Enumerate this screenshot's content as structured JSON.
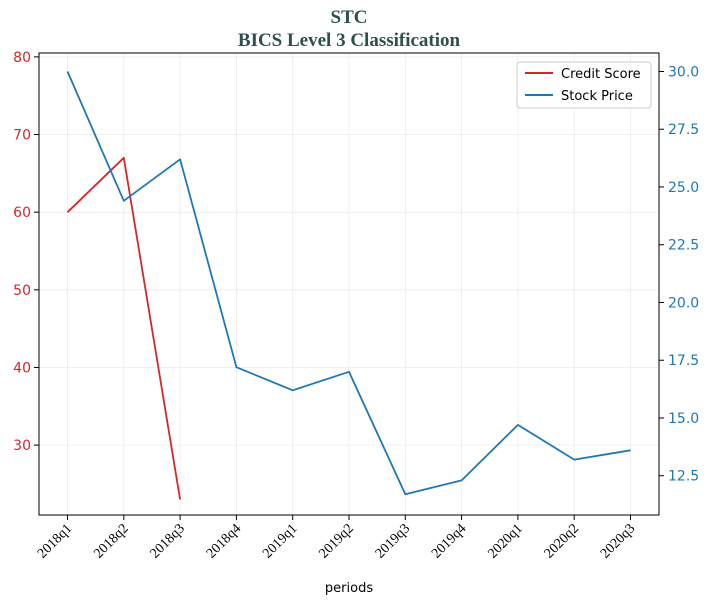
{
  "chart_data": {
    "type": "line",
    "title_line1": "STC",
    "title_line2": "BICS Level 3 Classification",
    "xlabel": "periods",
    "categories": [
      "2018q1",
      "2018q2",
      "2018q3",
      "2018q4",
      "2019q1",
      "2019q2",
      "2019q3",
      "2019q4",
      "2020q1",
      "2020q2",
      "2020q3"
    ],
    "y_left": {
      "ylim": [
        21,
        80.5
      ],
      "ticks": [
        30,
        40,
        50,
        60,
        70,
        80
      ],
      "tick_labels": [
        "30",
        "40",
        "50",
        "60",
        "70",
        "80"
      ],
      "color": "#d62728"
    },
    "y_right": {
      "ylim": [
        10.8,
        30.8
      ],
      "ticks": [
        12.5,
        15.0,
        17.5,
        20.0,
        22.5,
        25.0,
        27.5,
        30.0
      ],
      "tick_labels": [
        "12.5",
        "15.0",
        "17.5",
        "20.0",
        "22.5",
        "25.0",
        "27.5",
        "30.0"
      ],
      "color": "#1f77b4"
    },
    "grid": true,
    "legend_position": "top-right",
    "series": [
      {
        "name": "Credit Score",
        "axis": "left",
        "color": "#d62728",
        "values": [
          60,
          67,
          23,
          null,
          null,
          null,
          null,
          null,
          null,
          null,
          null
        ]
      },
      {
        "name": "Stock Price",
        "axis": "right",
        "color": "#1f77b4",
        "values": [
          30.0,
          24.4,
          26.2,
          17.2,
          16.2,
          17.0,
          11.7,
          12.3,
          14.7,
          13.2,
          13.6
        ]
      }
    ]
  }
}
